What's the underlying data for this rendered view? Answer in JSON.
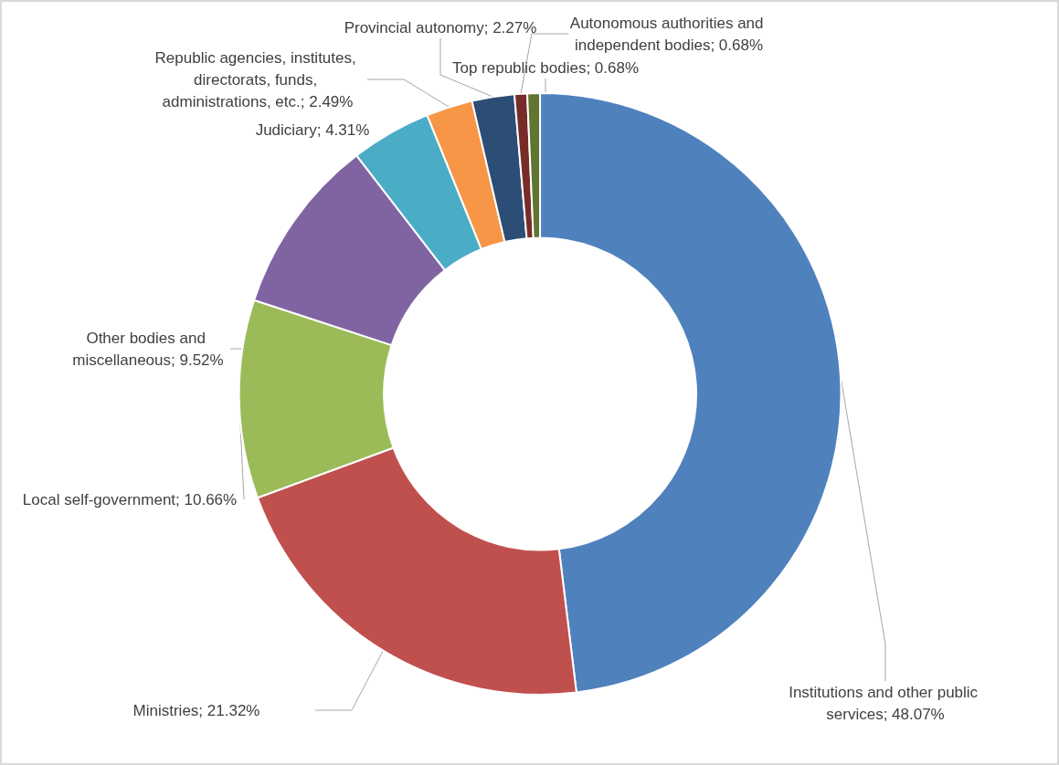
{
  "chart_data": {
    "type": "donut",
    "categories": [
      "Institutions and other public services",
      "Ministries",
      "Local self-government",
      "Other bodies and miscellaneous",
      "Judiciary",
      "Republic agencies, institutes, directorats, funds, administrations, etc.",
      "Provincial autonomy",
      "Autonomous authorities and independent bodies",
      "Top republic bodies"
    ],
    "values": [
      48.07,
      21.32,
      10.66,
      9.52,
      4.31,
      2.49,
      2.27,
      0.68,
      0.68
    ],
    "value_labels": [
      "48.07%",
      "21.32%",
      "10.66%",
      "9.52%",
      "4.31%",
      "2.49%",
      "2.27%",
      "0.68%",
      "0.68%"
    ],
    "colors": [
      "#4f81bd",
      "#c0504d",
      "#9bbb59",
      "#8064a2",
      "#4bacc6",
      "#f79646",
      "#2c4d75",
      "#772c2a",
      "#5f7530"
    ],
    "legend": false
  }
}
